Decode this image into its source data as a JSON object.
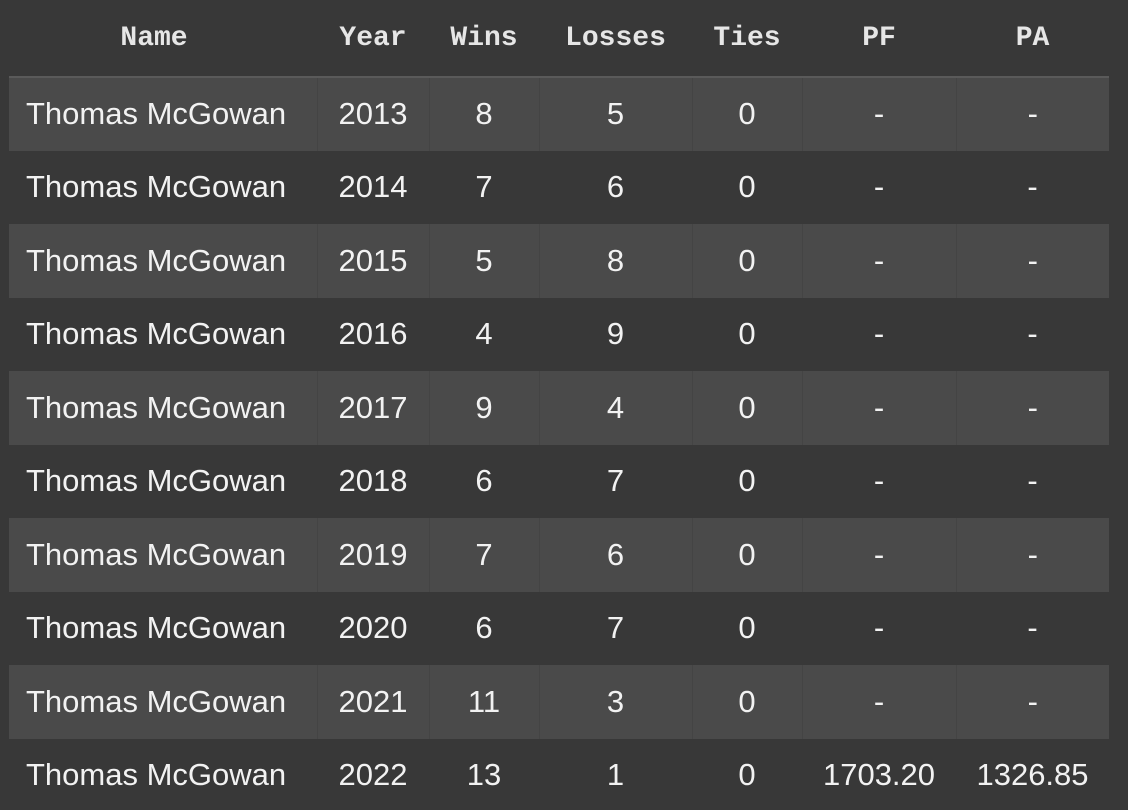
{
  "table": {
    "headers": [
      "Name",
      "Year",
      "Wins",
      "Losses",
      "Ties",
      "PF",
      "PA"
    ],
    "rows": [
      [
        "Thomas McGowan",
        "2013",
        "8",
        "5",
        "0",
        "-",
        "-"
      ],
      [
        "Thomas McGowan",
        "2014",
        "7",
        "6",
        "0",
        "-",
        "-"
      ],
      [
        "Thomas McGowan",
        "2015",
        "5",
        "8",
        "0",
        "-",
        "-"
      ],
      [
        "Thomas McGowan",
        "2016",
        "4",
        "9",
        "0",
        "-",
        "-"
      ],
      [
        "Thomas McGowan",
        "2017",
        "9",
        "4",
        "0",
        "-",
        "-"
      ],
      [
        "Thomas McGowan",
        "2018",
        "6",
        "7",
        "0",
        "-",
        "-"
      ],
      [
        "Thomas McGowan",
        "2019",
        "7",
        "6",
        "0",
        "-",
        "-"
      ],
      [
        "Thomas McGowan",
        "2020",
        "6",
        "7",
        "0",
        "-",
        "-"
      ],
      [
        "Thomas McGowan",
        "2021",
        "11",
        "3",
        "0",
        "-",
        "-"
      ],
      [
        "Thomas McGowan",
        "2022",
        "13",
        "1",
        "0",
        "1703.20",
        "1326.85"
      ]
    ]
  },
  "colors": {
    "background": "#383838",
    "row_alt": "#4a4a4a",
    "text": "#f2f2f2",
    "header_text": "#e6e6e6"
  }
}
